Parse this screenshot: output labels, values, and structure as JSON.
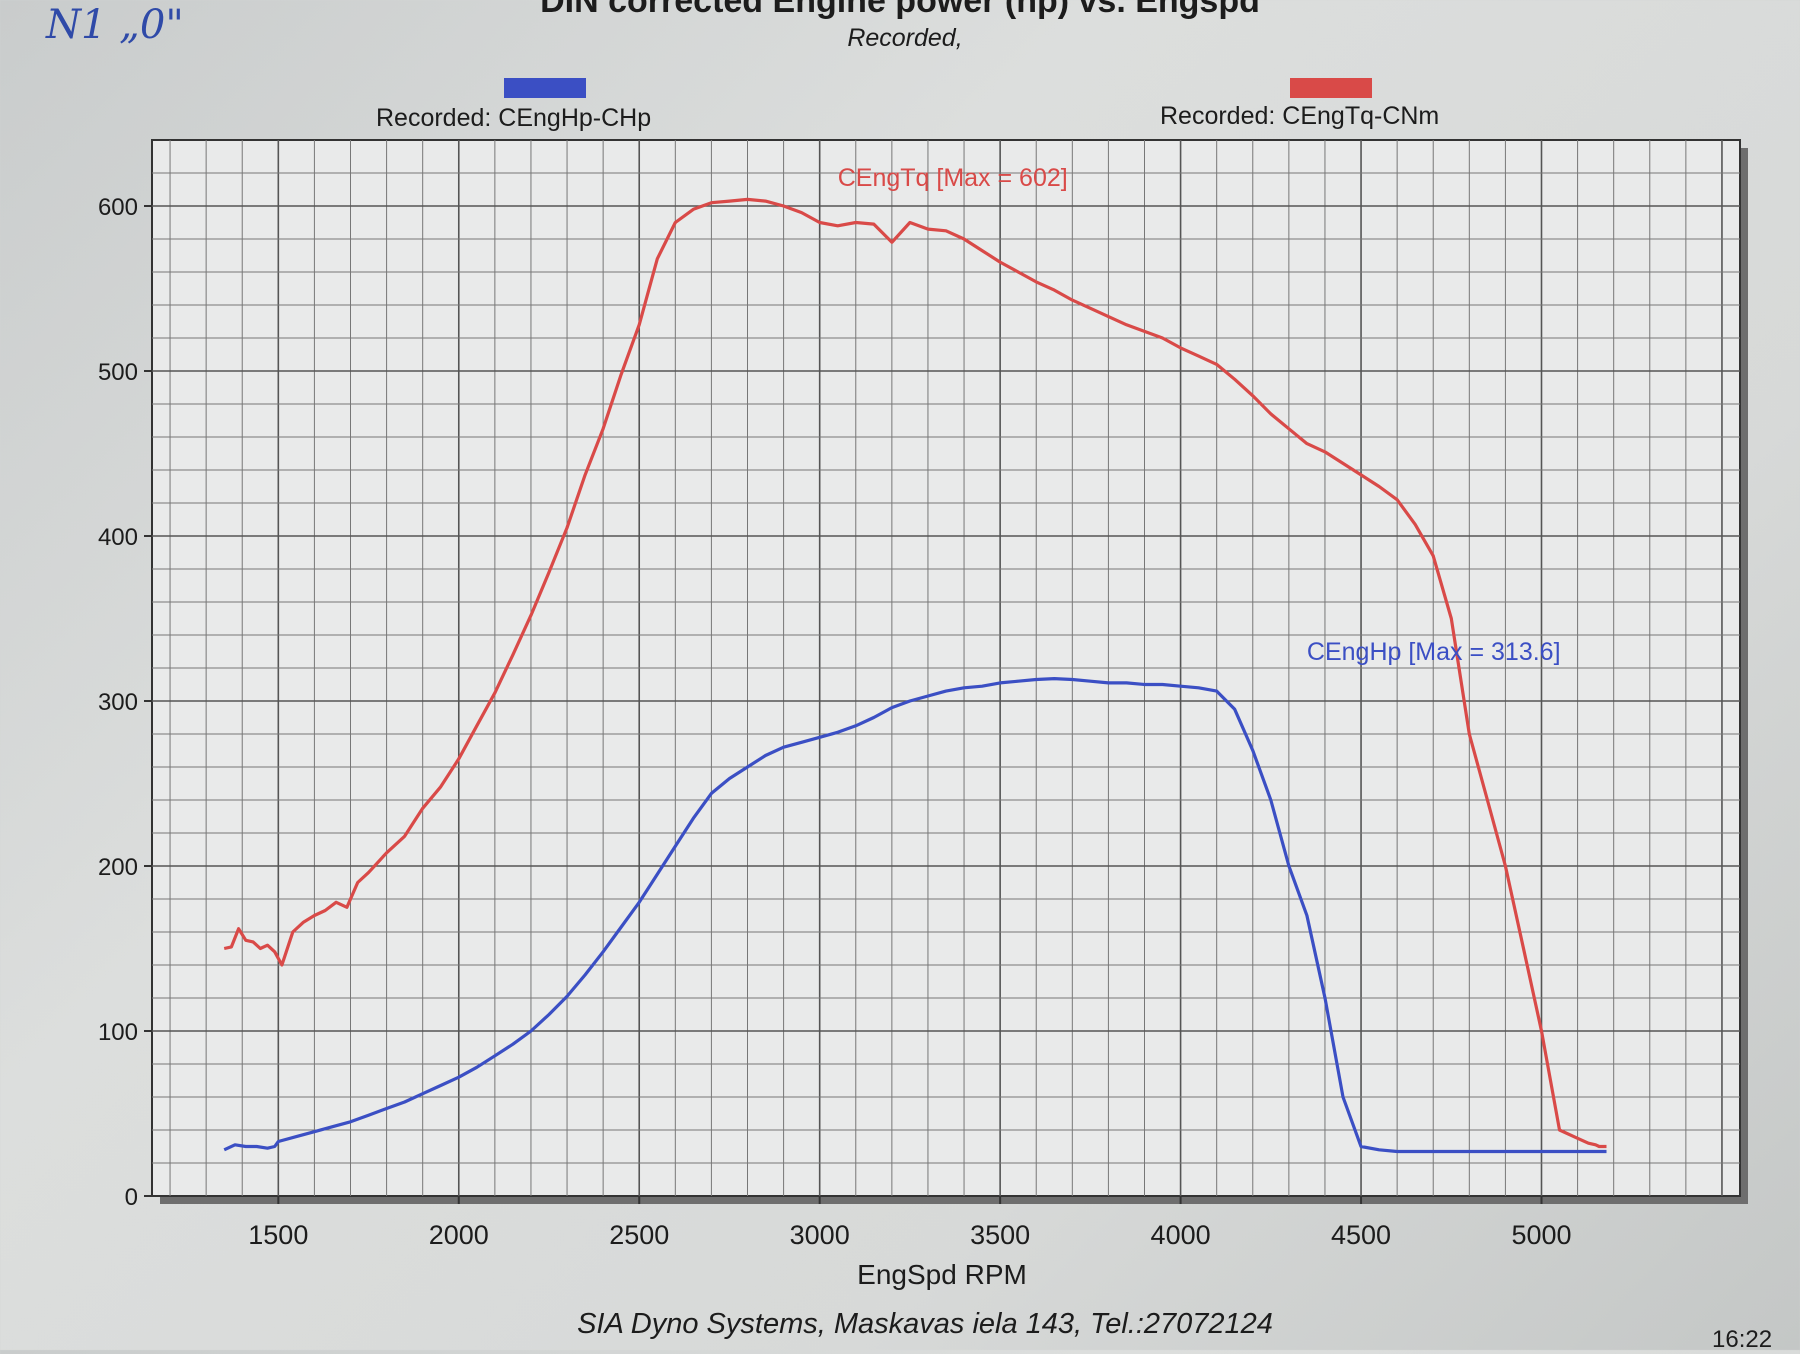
{
  "annotation": {
    "handwriting": "N1  „0\""
  },
  "legend": [
    {
      "label": "Recorded: CEngHp-CHp",
      "color": "#3b4fc4"
    },
    {
      "label": "Recorded: CEngTq-CNm",
      "color": "#d94a48"
    }
  ],
  "footer": {
    "text": "SIA Dyno Systems, Maskavas iela 143, Tel.:27072124",
    "time": "16:22"
  },
  "chart_data": {
    "type": "line",
    "title": "DIN corrected Engine power (hp) vs. Engspd",
    "subtitle": "Recorded,",
    "xlabel": "EngSpd RPM",
    "ylabel": "",
    "xlim": [
      1150,
      5550
    ],
    "ylim": [
      0,
      640
    ],
    "xticks": [
      1500,
      2000,
      2500,
      3000,
      3500,
      4000,
      4500,
      5000
    ],
    "yticks": [
      0,
      100,
      200,
      300,
      400,
      500,
      600
    ],
    "grid": true,
    "legend_position": "top",
    "series": [
      {
        "name": "CEngTq",
        "annotation": "CEngTq [Max = 602]",
        "color": "#d94a48",
        "x": [
          1350,
          1370,
          1390,
          1410,
          1430,
          1450,
          1470,
          1490,
          1510,
          1540,
          1570,
          1600,
          1630,
          1660,
          1690,
          1720,
          1750,
          1800,
          1850,
          1900,
          1950,
          2000,
          2050,
          2100,
          2150,
          2200,
          2250,
          2300,
          2350,
          2400,
          2450,
          2500,
          2550,
          2600,
          2650,
          2700,
          2750,
          2800,
          2850,
          2900,
          2950,
          3000,
          3050,
          3100,
          3150,
          3200,
          3250,
          3300,
          3350,
          3400,
          3450,
          3500,
          3550,
          3600,
          3650,
          3700,
          3750,
          3800,
          3850,
          3900,
          3950,
          4000,
          4050,
          4100,
          4150,
          4200,
          4250,
          4300,
          4350,
          4400,
          4450,
          4500,
          4550,
          4600,
          4650,
          4700,
          4750,
          4800,
          4850,
          4900,
          4950,
          5000,
          5050,
          5100,
          5130,
          5150,
          5160,
          5170,
          5180
        ],
        "y": [
          150,
          151,
          162,
          155,
          154,
          150,
          152,
          148,
          140,
          160,
          166,
          170,
          173,
          178,
          175,
          190,
          196,
          208,
          218,
          235,
          248,
          265,
          285,
          305,
          328,
          352,
          378,
          405,
          437,
          465,
          498,
          528,
          568,
          590,
          598,
          602,
          603,
          604,
          603,
          600,
          596,
          590,
          588,
          590,
          589,
          578,
          590,
          586,
          585,
          580,
          573,
          566,
          560,
          554,
          549,
          543,
          538,
          533,
          528,
          524,
          520,
          514,
          509,
          504,
          495,
          485,
          474,
          465,
          456,
          451,
          444,
          437,
          430,
          422,
          407,
          388,
          350,
          280,
          240,
          200,
          150,
          100,
          40,
          35,
          32,
          31,
          30,
          30,
          30
        ]
      },
      {
        "name": "CEngHp",
        "annotation": "CEngHp [Max = 313.6]",
        "color": "#3b4fc4",
        "x": [
          1350,
          1380,
          1410,
          1440,
          1470,
          1490,
          1500,
          1550,
          1600,
          1650,
          1700,
          1750,
          1800,
          1850,
          1900,
          1950,
          2000,
          2050,
          2100,
          2150,
          2200,
          2250,
          2300,
          2350,
          2400,
          2450,
          2500,
          2550,
          2600,
          2650,
          2700,
          2750,
          2800,
          2850,
          2900,
          2950,
          3000,
          3050,
          3100,
          3150,
          3200,
          3250,
          3300,
          3350,
          3400,
          3450,
          3500,
          3550,
          3600,
          3650,
          3700,
          3750,
          3800,
          3850,
          3900,
          3950,
          4000,
          4050,
          4100,
          4150,
          4200,
          4250,
          4300,
          4350,
          4400,
          4450,
          4500,
          4550,
          4600,
          4650,
          4700,
          4750,
          4800,
          4850,
          4900,
          4950,
          5000,
          5030,
          5060,
          5090,
          5120,
          5150,
          5160,
          5170,
          5180
        ],
        "y": [
          28,
          31,
          30,
          30,
          29,
          30,
          33,
          36,
          39,
          42,
          45,
          49,
          53,
          57,
          62,
          67,
          72,
          78,
          85,
          92,
          100,
          110,
          121,
          134,
          148,
          163,
          178,
          195,
          212,
          229,
          244,
          253,
          260,
          267,
          272,
          275,
          278,
          281,
          285,
          290,
          296,
          300,
          303,
          306,
          308,
          309,
          311,
          312,
          313,
          313.6,
          313,
          312,
          311,
          311,
          310,
          310,
          309,
          308,
          306,
          295,
          270,
          240,
          200,
          170,
          120,
          60,
          30,
          28,
          27,
          27,
          27,
          27,
          27,
          27,
          27,
          27,
          27,
          27,
          27,
          27,
          27,
          27,
          27,
          27,
          27
        ]
      }
    ]
  }
}
